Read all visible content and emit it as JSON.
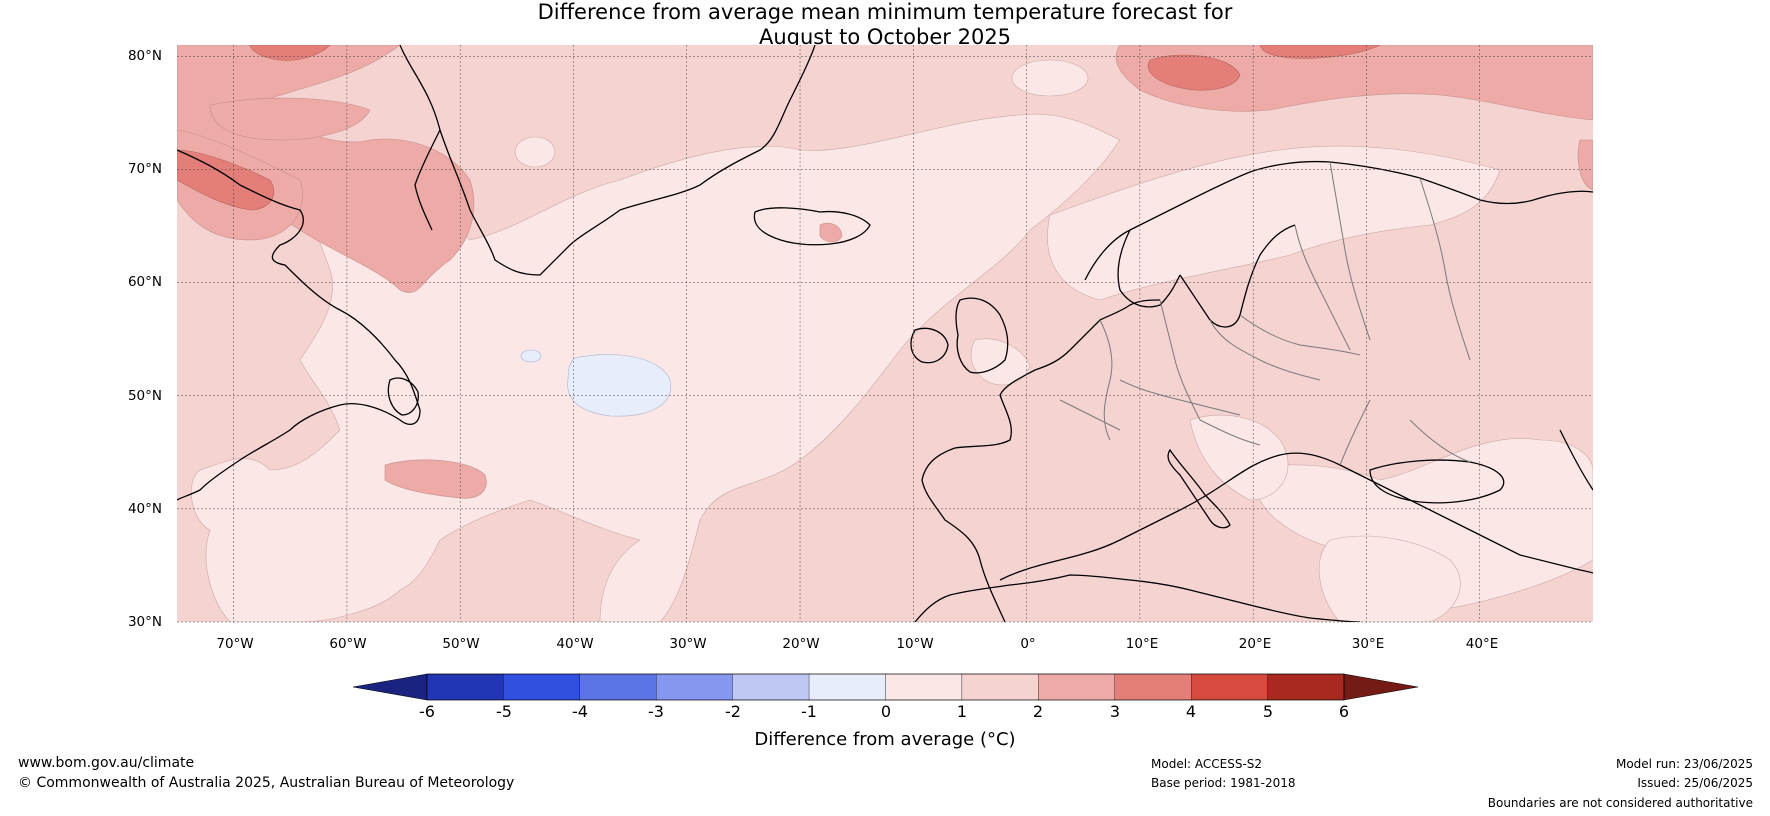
{
  "title": {
    "line1": "Difference from average mean minimum temperature forecast for",
    "line2": "August to October 2025"
  },
  "map": {
    "lat_labels": [
      "80°N",
      "70°N",
      "60°N",
      "50°N",
      "40°N",
      "30°N"
    ],
    "lon_labels": [
      "70°W",
      "60°W",
      "50°W",
      "40°W",
      "30°W",
      "20°W",
      "10°W",
      "0°",
      "10°E",
      "20°E",
      "30°E",
      "40°E"
    ],
    "extent": {
      "lon_min": -75,
      "lon_max": 50,
      "lat_min": 30,
      "lat_max": 81
    },
    "background_anomaly_class": "1 to 2",
    "grid": true
  },
  "colorbar": {
    "ticks": [
      "-6",
      "-5",
      "-4",
      "-3",
      "-2",
      "-1",
      "0",
      "1",
      "2",
      "3",
      "4",
      "5",
      "6"
    ],
    "label": "Difference from average (°C)",
    "colors": {
      "below_-6": "#1b2380",
      "-6_-5": "#2235b4",
      "-5_-4": "#3050e0",
      "-4_-3": "#5b74e6",
      "-3_-2": "#8597ee",
      "-2_-1": "#bfc8f5",
      "-1_0": "#e8edfb",
      "0_1": "#fbe8e6",
      "1_2": "#f5d3d0",
      "2_3": "#edaaa6",
      "3_4": "#e37f78",
      "4_5": "#d64a40",
      "5_6": "#a9281f",
      "above_6": "#741b16"
    }
  },
  "footer": {
    "website": "www.bom.gov.au/climate",
    "copyright": "© Commonwealth of Australia 2025, Australian Bureau of Meteorology",
    "model": "Model: ACCESS-S2",
    "base_period": "Base period: 1981-2018",
    "model_run": "Model run: 23/06/2025",
    "issued": "Issued: 25/06/2025",
    "disclaimer": "Boundaries are not considered authoritative"
  }
}
